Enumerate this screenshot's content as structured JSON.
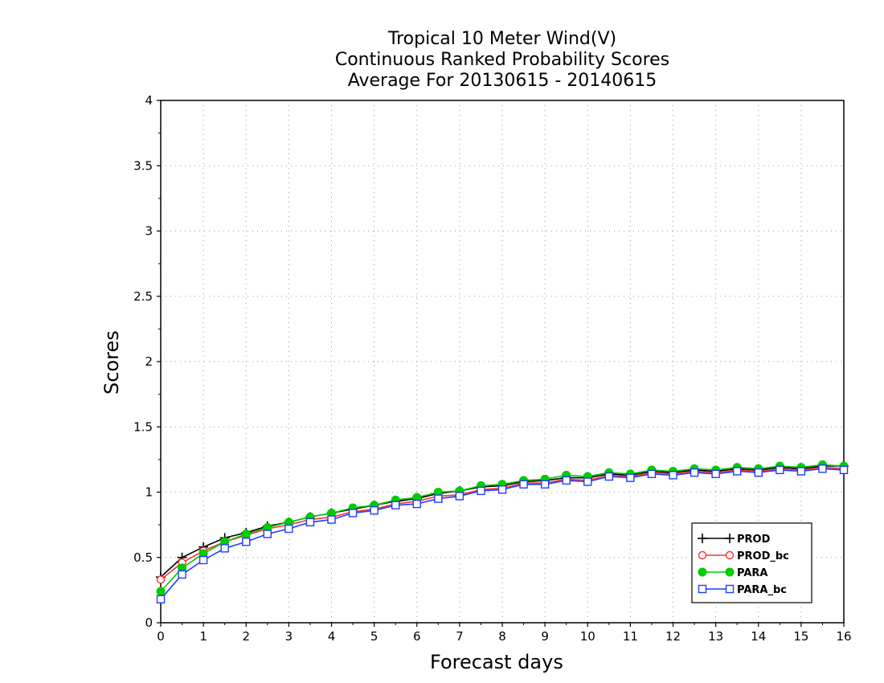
{
  "chart_data": {
    "type": "line",
    "title": [
      "Tropical 10 Meter Wind(V)",
      "Continuous Ranked Probability Scores",
      "Average For 20130615 - 20140615"
    ],
    "xlabel": "Forecast days",
    "ylabel": "Scores",
    "xlim": [
      0,
      16
    ],
    "ylim": [
      0,
      4
    ],
    "xticks": [
      0,
      1,
      2,
      3,
      4,
      5,
      6,
      7,
      8,
      9,
      10,
      11,
      12,
      13,
      14,
      15,
      16
    ],
    "yticks": [
      0,
      0.5,
      1,
      1.5,
      2,
      2.5,
      3,
      3.5,
      4
    ],
    "ytick_labels": [
      "0",
      "0.5",
      "1",
      "1.5",
      "2",
      "2.5",
      "3",
      "3.5",
      "4"
    ],
    "grid": true,
    "legend_position": "bottom-right",
    "x": [
      0,
      0.5,
      1,
      1.5,
      2,
      2.5,
      3,
      3.5,
      4,
      4.5,
      5,
      5.5,
      6,
      6.5,
      7,
      7.5,
      8,
      8.5,
      9,
      9.5,
      10,
      10.5,
      11,
      11.5,
      12,
      12.5,
      13,
      13.5,
      14,
      14.5,
      15,
      15.5,
      16
    ],
    "series": [
      {
        "name": "PROD",
        "color": "#000000",
        "marker": "plus",
        "values": [
          0.35,
          0.5,
          0.58,
          0.65,
          0.69,
          0.74,
          0.77,
          0.81,
          0.84,
          0.87,
          0.9,
          0.93,
          0.95,
          0.99,
          1.01,
          1.04,
          1.05,
          1.08,
          1.09,
          1.11,
          1.11,
          1.14,
          1.13,
          1.16,
          1.15,
          1.17,
          1.16,
          1.18,
          1.17,
          1.19,
          1.18,
          1.2,
          1.2
        ]
      },
      {
        "name": "PROD_bc",
        "color": "#ff3030",
        "marker": "circle-open",
        "values": [
          0.33,
          0.46,
          0.55,
          0.62,
          0.67,
          0.72,
          0.75,
          0.79,
          0.81,
          0.85,
          0.87,
          0.91,
          0.93,
          0.97,
          0.98,
          1.02,
          1.03,
          1.07,
          1.07,
          1.1,
          1.09,
          1.13,
          1.12,
          1.15,
          1.14,
          1.16,
          1.15,
          1.17,
          1.16,
          1.18,
          1.17,
          1.19,
          1.18
        ]
      },
      {
        "name": "PARA",
        "color": "#00cc00",
        "marker": "circle-filled",
        "values": [
          0.24,
          0.42,
          0.53,
          0.62,
          0.68,
          0.73,
          0.77,
          0.81,
          0.84,
          0.88,
          0.9,
          0.94,
          0.96,
          1.0,
          1.01,
          1.05,
          1.06,
          1.09,
          1.1,
          1.13,
          1.12,
          1.15,
          1.14,
          1.17,
          1.16,
          1.18,
          1.17,
          1.19,
          1.18,
          1.2,
          1.19,
          1.21,
          1.2
        ]
      },
      {
        "name": "PARA_bc",
        "color": "#1e3cff",
        "marker": "square-open",
        "values": [
          0.18,
          0.37,
          0.48,
          0.57,
          0.62,
          0.68,
          0.72,
          0.77,
          0.79,
          0.84,
          0.86,
          0.9,
          0.91,
          0.95,
          0.97,
          1.01,
          1.02,
          1.06,
          1.06,
          1.09,
          1.08,
          1.12,
          1.11,
          1.14,
          1.13,
          1.15,
          1.14,
          1.16,
          1.15,
          1.17,
          1.16,
          1.18,
          1.17
        ]
      }
    ]
  }
}
